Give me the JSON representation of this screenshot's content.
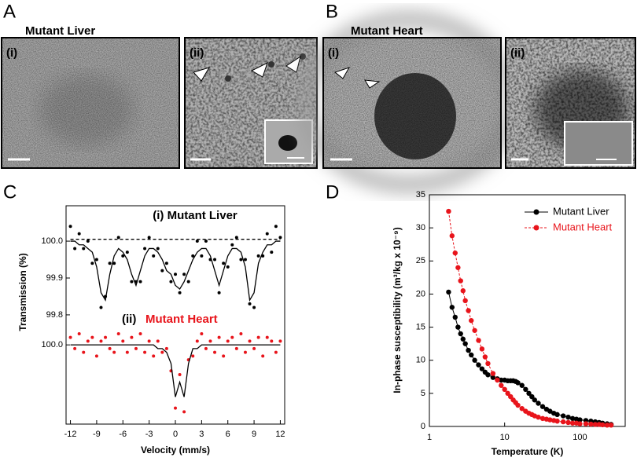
{
  "panels": {
    "A": {
      "letter": "A",
      "title": "Mutant Liver",
      "sub": [
        "(i)",
        "(ii)"
      ]
    },
    "B": {
      "letter": "B",
      "title": "Mutant Heart",
      "sub": [
        "(i)",
        "(ii)"
      ]
    },
    "C": {
      "letter": "C"
    },
    "D": {
      "letter": "D"
    }
  },
  "chart_data": [
    {
      "type": "scatter",
      "title": "(i) Mutant Liver",
      "ylabel": "Transmission (%)",
      "xlim": [
        -12.5,
        12.5
      ],
      "ylim": [
        99.77,
        100.096
      ],
      "yticks": [
        {
          "value": 100,
          "label": "100.0"
        },
        99.9,
        99.8
      ],
      "x": [
        -12,
        -11.5,
        -11,
        -10.5,
        -10,
        -9.5,
        -9,
        -8.5,
        -8,
        -7.5,
        -7,
        -6.5,
        -6,
        -5.5,
        -5,
        -4.5,
        -4,
        -3.5,
        -3,
        -2.5,
        -2,
        -1.5,
        -1,
        -0.5,
        0,
        0.5,
        1,
        1.5,
        2,
        2.5,
        3,
        3.5,
        4,
        4.5,
        5,
        5.5,
        6,
        6.5,
        7,
        7.5,
        8,
        8.5,
        9,
        9.5,
        10,
        10.5,
        11,
        11.5,
        12
      ],
      "series": [
        {
          "kind": "scatter",
          "color": "#000000",
          "values": [
            100.04,
            99.98,
            100.02,
            99.98,
            100.0,
            99.94,
            99.95,
            99.82,
            99.85,
            99.94,
            99.94,
            100.01,
            99.96,
            99.97,
            99.89,
            99.89,
            99.89,
            99.98,
            100.01,
            99.96,
            99.98,
            99.92,
            99.94,
            99.89,
            99.91,
            99.86,
            99.91,
            99.89,
            99.96,
            100.0,
            99.96,
            100.0,
            99.95,
            99.95,
            99.86,
            99.94,
            99.93,
            99.99,
            100.01,
            99.95,
            99.95,
            99.83,
            99.82,
            99.96,
            99.96,
            100.02,
            99.97,
            100.04,
            100.01
          ]
        },
        {
          "kind": "line",
          "color": "#000000",
          "values": [
            100.0,
            100.0,
            99.99,
            99.99,
            99.98,
            99.97,
            99.93,
            99.86,
            99.84,
            99.91,
            99.96,
            99.98,
            99.97,
            99.95,
            99.91,
            99.88,
            99.92,
            99.96,
            99.98,
            99.98,
            99.97,
            99.95,
            99.92,
            99.91,
            99.88,
            99.87,
            99.89,
            99.92,
            99.95,
            99.97,
            99.98,
            99.98,
            99.96,
            99.92,
            99.88,
            99.92,
            99.96,
            99.98,
            99.98,
            99.97,
            99.93,
            99.84,
            99.86,
            99.94,
            99.97,
            99.99,
            99.99,
            100.0,
            100.0
          ]
        },
        {
          "kind": "line",
          "color": "#000000",
          "dashed": true,
          "x": [
            -12,
            12
          ],
          "values": [
            100.005,
            100.005
          ]
        }
      ]
    },
    {
      "type": "scatter",
      "label": "(ii)",
      "title": "Mutant Heart",
      "title_color": "#e8141b",
      "xlabel": "Velocity (mm/s)",
      "xlim": [
        -12.5,
        12.5
      ],
      "ylim": [
        99.787,
        100.051
      ],
      "xticks": [
        -12,
        -9,
        -6,
        -3,
        0,
        3,
        6,
        9,
        12
      ],
      "yticks": [
        {
          "value": 100,
          "label": "100.0"
        }
      ],
      "x": [
        -12,
        -11.5,
        -11,
        -10.5,
        -10,
        -9.5,
        -9,
        -8.5,
        -8,
        -7.5,
        -7,
        -6.5,
        -6,
        -5.5,
        -5,
        -4.5,
        -4,
        -3.5,
        -3,
        -2.5,
        -2,
        -1.5,
        -1,
        -0.5,
        0,
        0.5,
        1,
        1.5,
        2,
        2.5,
        3,
        3.5,
        4,
        4.5,
        5,
        5.5,
        6,
        6.5,
        7,
        7.5,
        8,
        8.5,
        9,
        9.5,
        10,
        10.5,
        11,
        11.5,
        12
      ],
      "series": [
        {
          "kind": "scatter",
          "color": "#e8141b",
          "values": [
            100.02,
            99.99,
            100.03,
            99.98,
            100.01,
            100.02,
            99.97,
            100.01,
            100.02,
            99.99,
            99.98,
            100.03,
            100.01,
            99.98,
            100.02,
            99.99,
            100.03,
            99.98,
            100.01,
            99.97,
            100.01,
            99.98,
            99.99,
            99.93,
            99.83,
            99.92,
            99.82,
            99.96,
            99.97,
            100.01,
            100.03,
            99.99,
            100.01,
            99.98,
            100.02,
            99.97,
            100.01,
            100.02,
            99.99,
            100.03,
            99.98,
            100.01,
            99.99,
            100.02,
            99.97,
            100.02,
            100.01,
            99.98,
            100.01
          ]
        },
        {
          "kind": "line",
          "color": "#000000",
          "values": [
            100.0,
            100.0,
            100.0,
            100.0,
            100.0,
            100.0,
            100.0,
            100.0,
            100.0,
            100.0,
            100.0,
            100.0,
            100.0,
            100.0,
            100.0,
            100.0,
            100.0,
            100.0,
            100.0,
            100.0,
            99.99,
            99.99,
            99.98,
            99.95,
            99.86,
            99.9,
            99.86,
            99.95,
            99.99,
            99.99,
            100.0,
            100.0,
            100.0,
            100.0,
            100.0,
            100.0,
            100.0,
            100.0,
            100.0,
            100.0,
            100.0,
            100.0,
            100.0,
            100.0,
            100.0,
            100.0,
            100.0,
            100.0,
            100.0
          ]
        }
      ]
    },
    {
      "type": "line",
      "xlog": true,
      "xlabel": "Temperature (K)",
      "ylabel": "In-phase susceptibility (m³/kg x 10⁻⁹)",
      "xlim": [
        1,
        400
      ],
      "ylim": [
        0,
        35
      ],
      "xticks": [
        1,
        10,
        100
      ],
      "yticks": [
        0,
        5,
        10,
        15,
        20,
        25,
        30,
        35
      ],
      "legend": "upper right",
      "x": [
        1.8,
        2,
        2.2,
        2.4,
        2.6,
        2.8,
        3,
        3.3,
        3.6,
        4,
        4.5,
        5,
        5.5,
        6,
        7,
        8,
        9,
        10,
        11,
        12,
        13,
        14,
        15,
        17,
        19,
        21,
        23,
        25,
        28,
        32,
        36,
        40,
        45,
        50,
        60,
        70,
        80,
        90,
        100,
        120,
        140,
        160,
        180,
        200,
        230,
        260
      ],
      "series": [
        {
          "name": "Mutant Liver",
          "color": "#000000",
          "values": [
            20.3,
            18,
            16.5,
            15,
            14,
            13.2,
            12.5,
            11.5,
            10.8,
            10,
            9.3,
            8.7,
            8.2,
            7.8,
            7.4,
            7.2,
            7,
            7,
            6.9,
            6.9,
            6.9,
            6.8,
            6.6,
            6.2,
            5.6,
            5,
            4.5,
            4,
            3.5,
            3,
            2.6,
            2.3,
            2,
            1.8,
            1.6,
            1.4,
            1.2,
            1.1,
            1,
            0.9,
            0.8,
            0.7,
            0.6,
            0.5,
            0.4,
            0.3
          ]
        },
        {
          "name": "Mutant Heart",
          "color": "#e8141b",
          "dashed": true,
          "values": [
            32.5,
            28.8,
            26.2,
            24,
            22,
            20.5,
            19,
            17.5,
            16,
            14.5,
            13,
            11.7,
            10.5,
            9.5,
            8,
            7,
            6.2,
            5.6,
            5,
            4.5,
            4,
            3.6,
            3.2,
            2.7,
            2.3,
            2,
            1.8,
            1.6,
            1.4,
            1.2,
            1.1,
            1,
            0.9,
            0.8,
            0.7,
            0.6,
            0.5,
            0.5,
            0.4,
            0.4,
            0.35,
            0.3,
            0.3,
            0.25,
            0.2,
            0.2
          ]
        }
      ]
    }
  ]
}
